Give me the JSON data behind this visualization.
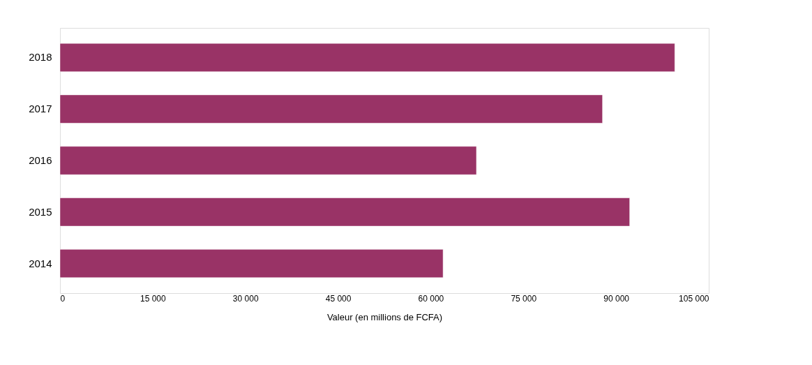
{
  "chart_data": {
    "type": "bar",
    "orientation": "horizontal",
    "categories": [
      "2018",
      "2017",
      "2016",
      "2015",
      "2014"
    ],
    "values": [
      99500,
      87800,
      67400,
      92200,
      62000
    ],
    "color": "#993366",
    "xlabel": "Valeur (en millions de FCFA)",
    "xlim": [
      0,
      105000
    ],
    "xticks": [
      0,
      {
        "value": 15000,
        "label": "15 000"
      },
      {
        "value": 30000,
        "label": "30 000"
      },
      {
        "value": 45000,
        "label": "45 000"
      },
      {
        "value": 60000,
        "label": "60 000"
      },
      {
        "value": 75000,
        "label": "75 000"
      },
      {
        "value": 90000,
        "label": "90 000"
      },
      {
        "value": 105000,
        "label": "105 000"
      }
    ],
    "grid": false
  }
}
